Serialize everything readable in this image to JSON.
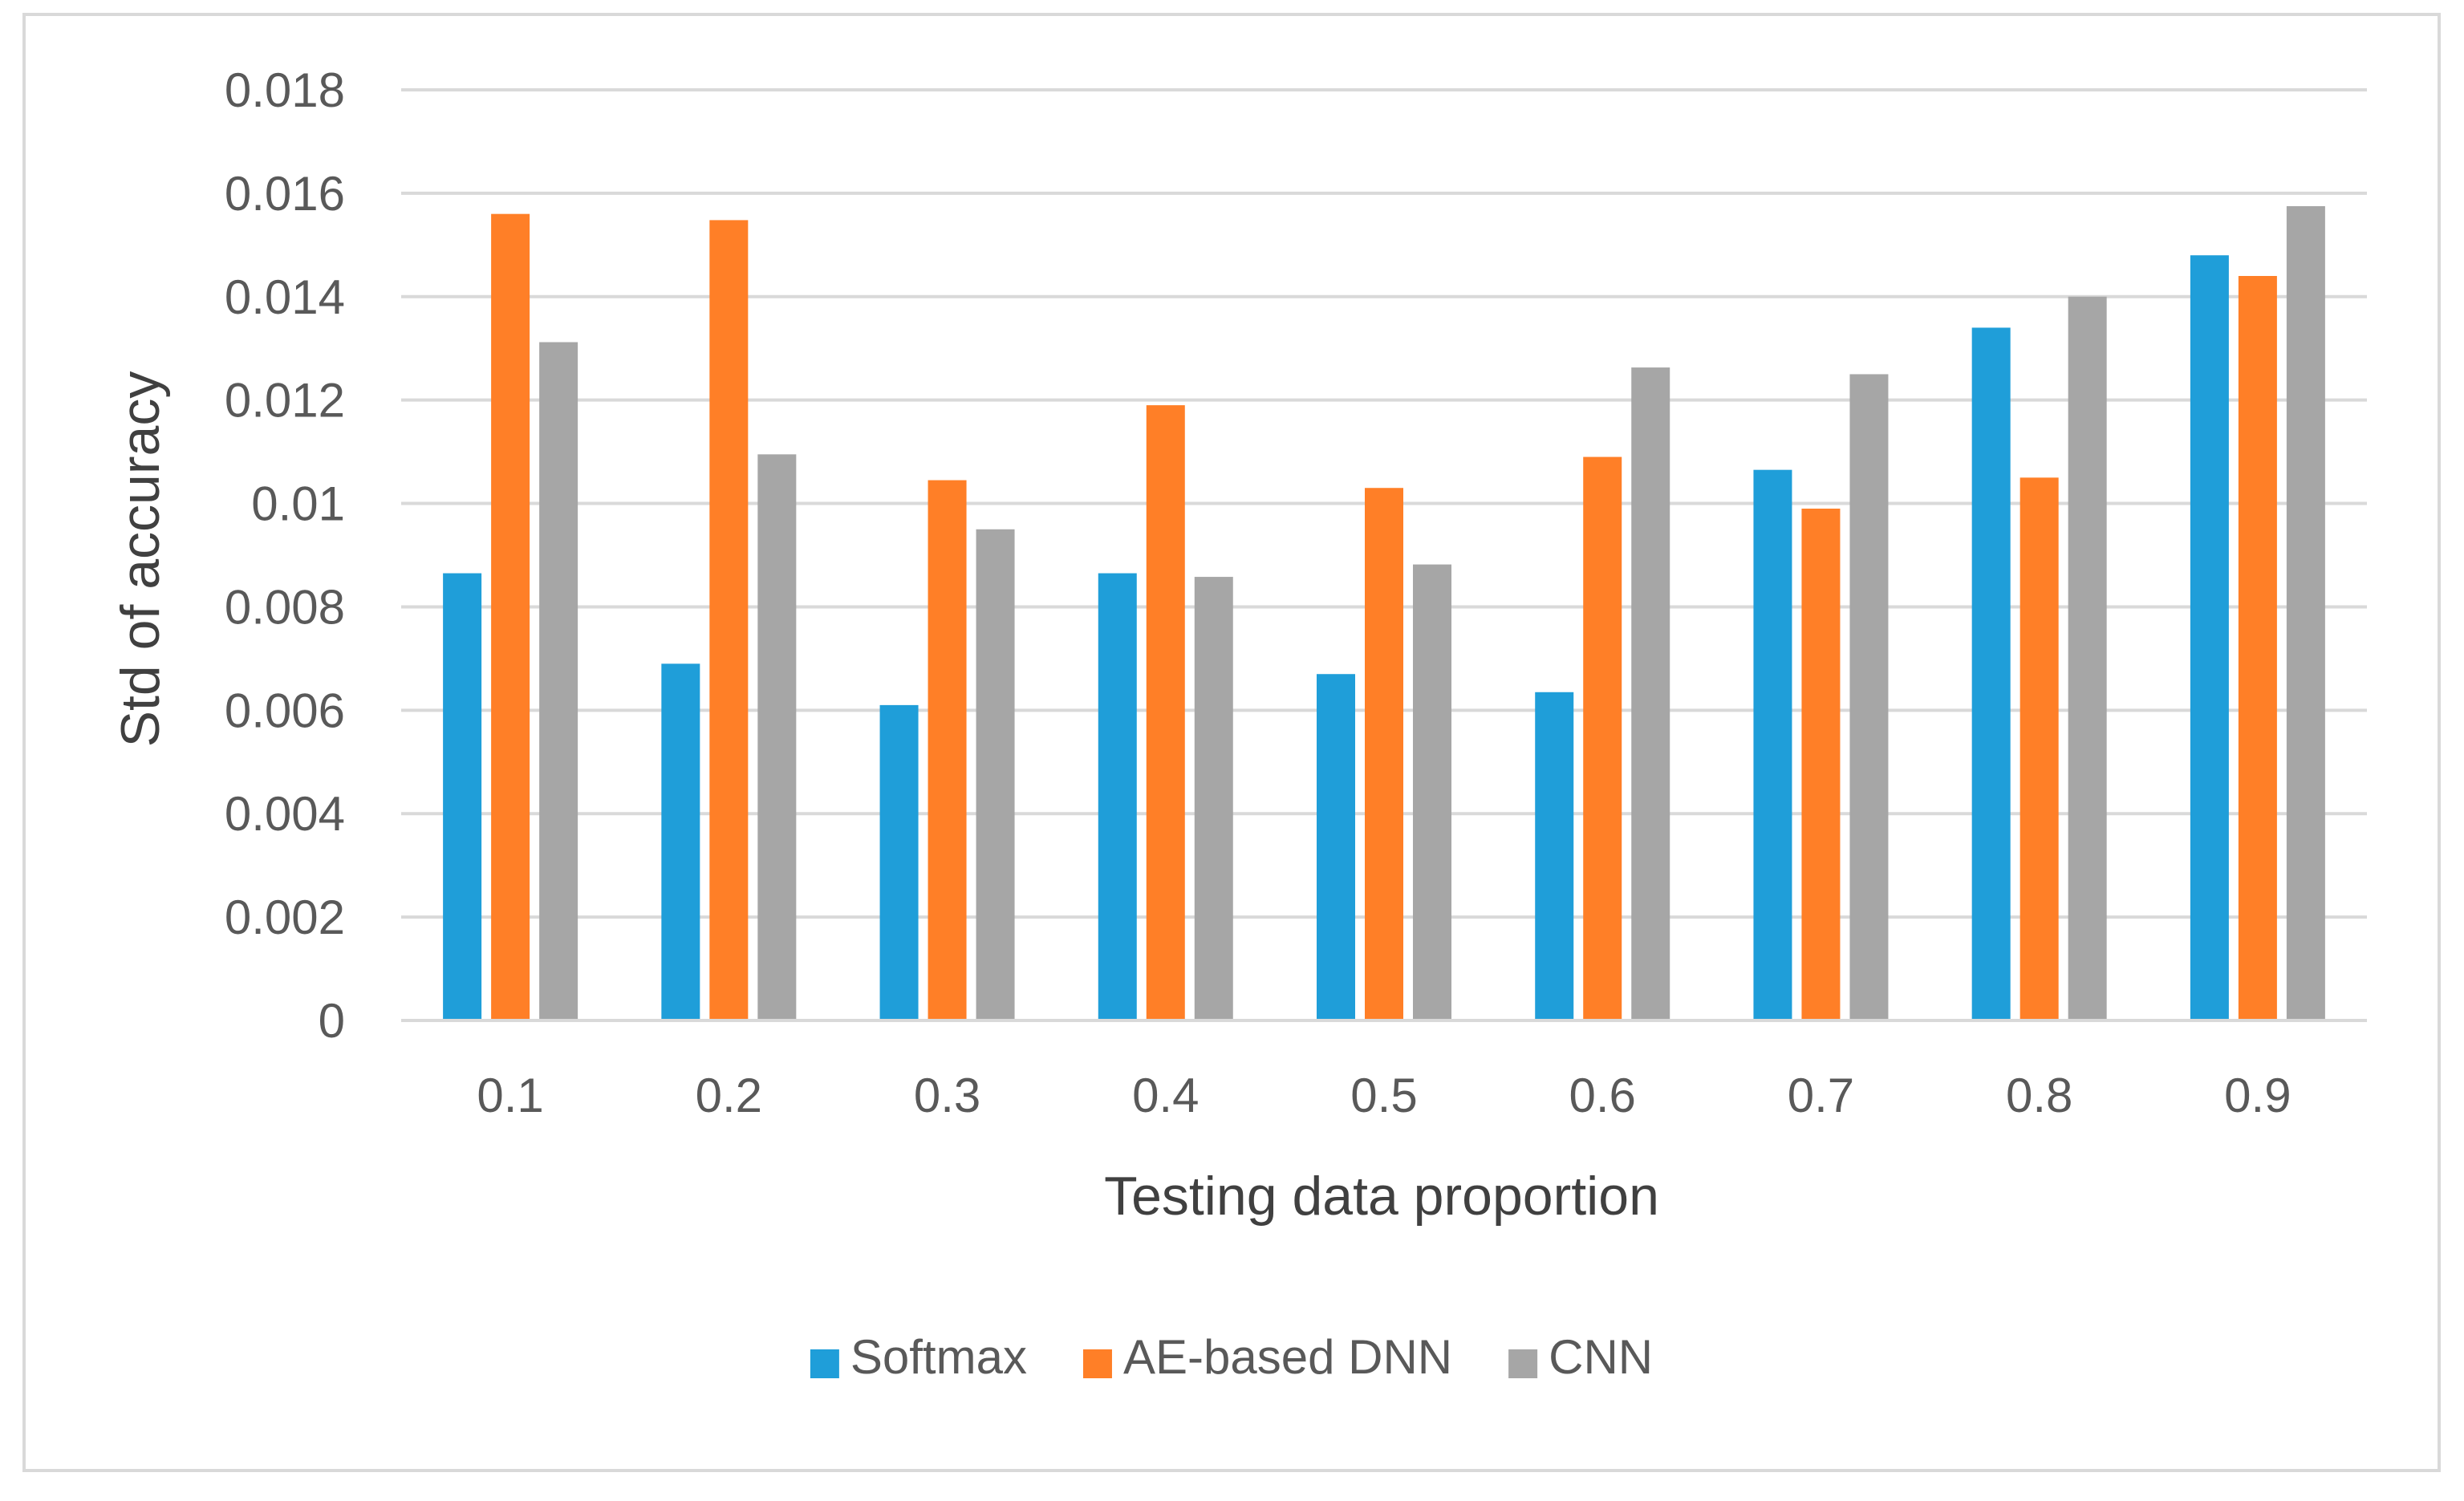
{
  "chart_data": {
    "type": "bar",
    "title": "",
    "xlabel": "Testing data proportion",
    "ylabel": "Std of accuracy",
    "categories": [
      "0.1",
      "0.2",
      "0.3",
      "0.4",
      "0.5",
      "0.6",
      "0.7",
      "0.8",
      "0.9"
    ],
    "series": [
      {
        "name": "Softmax",
        "color": "#1F9ED9",
        "values": [
          0.00865,
          0.0069,
          0.0061,
          0.00865,
          0.0067,
          0.00635,
          0.01065,
          0.0134,
          0.0148
        ]
      },
      {
        "name": "AE-based DNN",
        "color": "#FF7F27",
        "values": [
          0.0156,
          0.01548,
          0.01045,
          0.0119,
          0.0103,
          0.0109,
          0.0099,
          0.0105,
          0.0144
        ]
      },
      {
        "name": "CNN",
        "color": "#A6A6A6",
        "values": [
          0.01312,
          0.01095,
          0.0095,
          0.00858,
          0.00882,
          0.01263,
          0.0125,
          0.014,
          0.01575
        ]
      }
    ],
    "ylim": [
      0,
      0.018
    ],
    "yticks": [
      "0",
      "0.002",
      "0.004",
      "0.006",
      "0.008",
      "0.01",
      "0.012",
      "0.014",
      "0.016",
      "0.018"
    ],
    "grid": true,
    "legend_position": "bottom"
  }
}
